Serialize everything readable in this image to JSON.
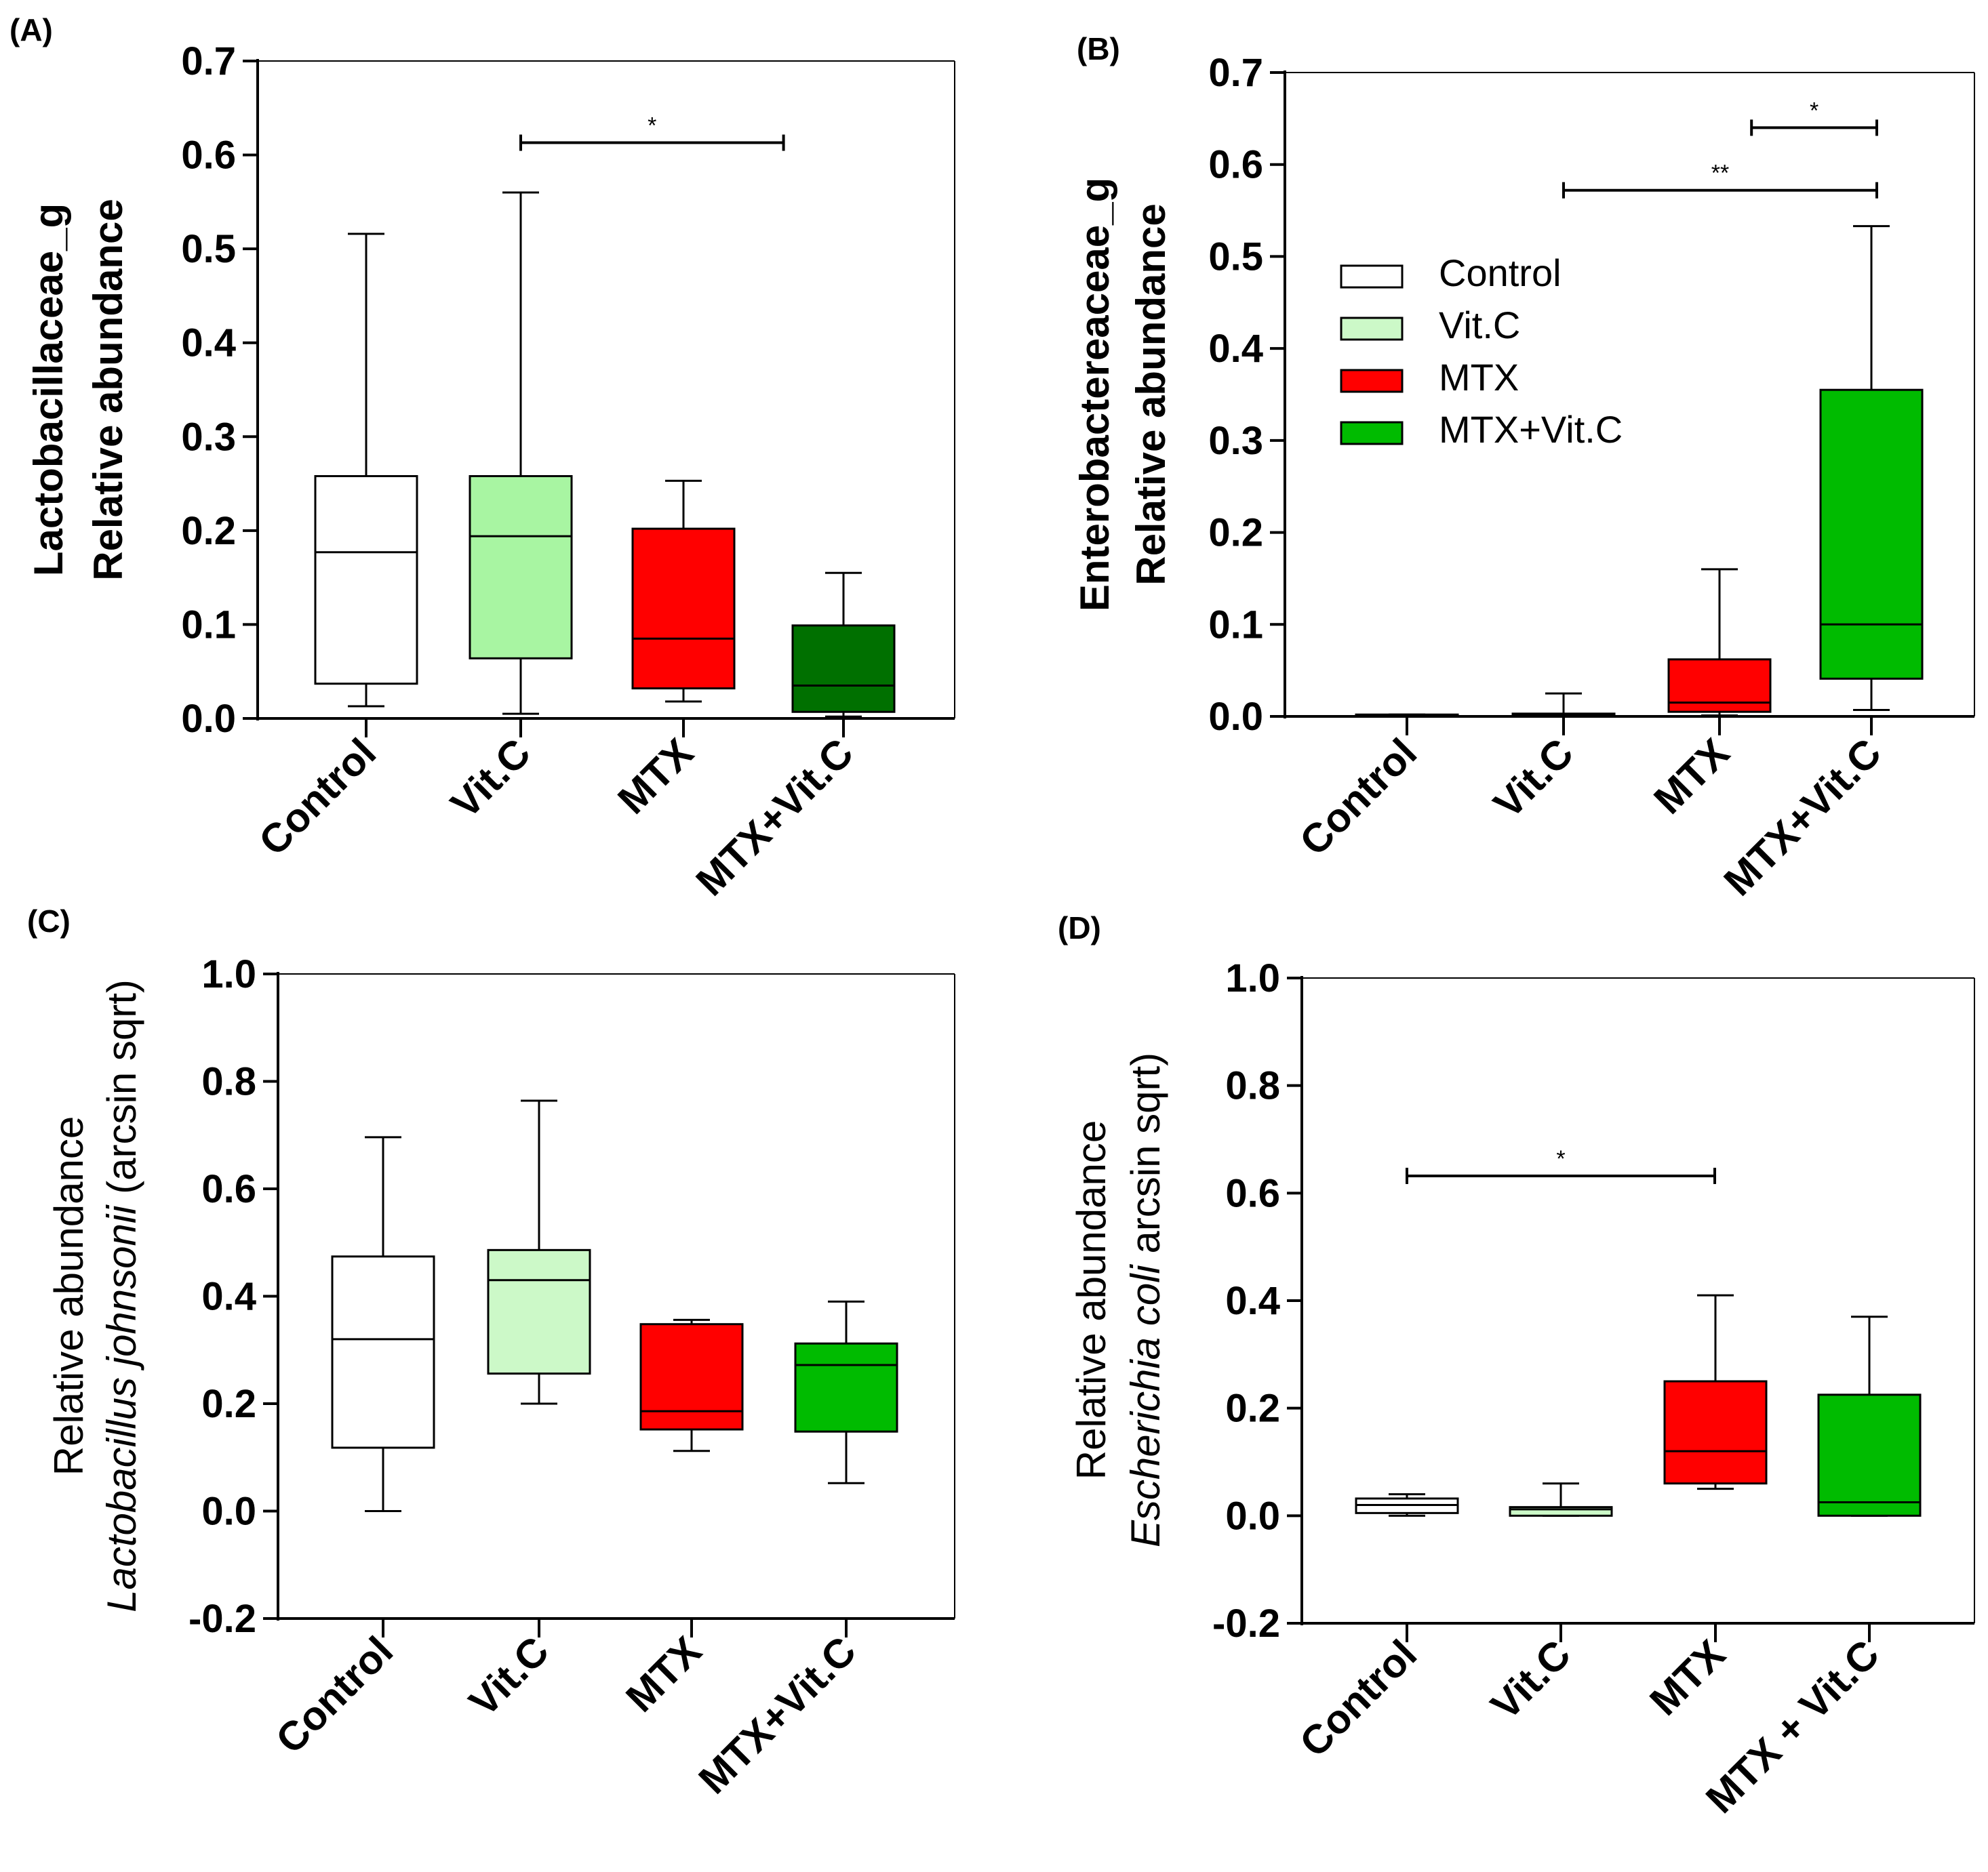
{
  "colors": {
    "control": "#ffffff",
    "vitc": "#a8f5a2",
    "vitc_light": "#ccf9c8",
    "mtx": "#ff0000",
    "mtx_vitc_dark": "#007000",
    "mtx_vitc": "#00bb00"
  },
  "chart_data": [
    {
      "type": "box",
      "panel": "(A)",
      "title": "",
      "ylabel_lines": [
        "Lactobacillaceae_g",
        "Relative abundance"
      ],
      "ylim": [
        0,
        0.7
      ],
      "yticks": [
        0.0,
        0.1,
        0.2,
        0.3,
        0.4,
        0.5,
        0.6,
        0.7
      ],
      "ytick_labels": [
        "0.0",
        "0.1",
        "0.2",
        "0.3",
        "0.4",
        "0.5",
        "0.6",
        "0.7"
      ],
      "categories": [
        "Control",
        "Vit.C",
        "MTX",
        "MTX+Vit.C"
      ],
      "boxes": [
        {
          "min": 0.013,
          "q1": 0.037,
          "median": 0.177,
          "q3": 0.258,
          "max": 0.516,
          "color": "control"
        },
        {
          "min": 0.005,
          "q1": 0.064,
          "median": 0.194,
          "q3": 0.258,
          "max": 0.56,
          "color": "vitc"
        },
        {
          "min": 0.018,
          "q1": 0.032,
          "median": 0.085,
          "q3": 0.202,
          "max": 0.253,
          "color": "mtx"
        },
        {
          "min": 0.002,
          "q1": 0.007,
          "median": 0.035,
          "q3": 0.099,
          "max": 0.155,
          "color": "mtx_vitc_dark"
        }
      ],
      "significance": [
        {
          "from": 1,
          "to": 2.7,
          "y": 0.613,
          "label": "*"
        }
      ]
    },
    {
      "type": "box",
      "panel": "(B)",
      "title": "",
      "ylabel_lines": [
        "Enterobactereaceae_g",
        "Relative abundance"
      ],
      "ylim": [
        0,
        0.7
      ],
      "yticks": [
        0.0,
        0.1,
        0.2,
        0.3,
        0.4,
        0.5,
        0.6,
        0.7
      ],
      "ytick_labels": [
        "0.0",
        "0.1",
        "0.2",
        "0.3",
        "0.4",
        "0.5",
        "0.6",
        "0.7"
      ],
      "categories": [
        "Control",
        "Vit.C",
        "MTX",
        "MTX+Vit.C"
      ],
      "boxes": [
        {
          "min": 0.001,
          "q1": 0.001,
          "median": 0.001,
          "q3": 0.002,
          "max": 0.002,
          "color": "control"
        },
        {
          "min": 0.0,
          "q1": 0.001,
          "median": 0.002,
          "q3": 0.003,
          "max": 0.025,
          "color": "vitc"
        },
        {
          "min": 0.001,
          "q1": 0.005,
          "median": 0.015,
          "q3": 0.062,
          "max": 0.16,
          "color": "mtx"
        },
        {
          "min": 0.007,
          "q1": 0.041,
          "median": 0.1,
          "q3": 0.355,
          "max": 0.533,
          "color": "mtx_vitc"
        }
      ],
      "significance": [
        {
          "from": 2.2,
          "to": 3.0,
          "y": 0.64,
          "label": "*"
        },
        {
          "from": 1.0,
          "to": 3.0,
          "y": 0.572,
          "label": "**"
        }
      ],
      "legend": {
        "position": "center-left",
        "entries": [
          {
            "label": "Control",
            "color": "control"
          },
          {
            "label": "Vit.C",
            "color": "vitc_light"
          },
          {
            "label": "MTX",
            "color": "mtx"
          },
          {
            "label": "MTX+Vit.C",
            "color": "mtx_vitc"
          }
        ]
      }
    },
    {
      "type": "box",
      "panel": "(C)",
      "title": "",
      "ylabel_lines": [
        "Relative abundance",
        "Lactobacillus johnsonii (arcsin sqrt)"
      ],
      "ylabel_italic_part": "Lactobacillus johnsonii",
      "ylabel_rest": " (arcsin sqrt)",
      "ylim": [
        -0.2,
        1.0
      ],
      "yticks": [
        -0.2,
        0.0,
        0.2,
        0.4,
        0.6,
        0.8,
        1.0
      ],
      "ytick_labels": [
        "-0.2",
        "0.0",
        "0.2",
        "0.4",
        "0.6",
        "0.8",
        "1.0"
      ],
      "categories": [
        "Control",
        "Vit.C",
        "MTX",
        "MTX+Vit.C"
      ],
      "boxes": [
        {
          "min": 0.0,
          "q1": 0.118,
          "median": 0.32,
          "q3": 0.474,
          "max": 0.696,
          "color": "control"
        },
        {
          "min": 0.2,
          "q1": 0.256,
          "median": 0.43,
          "q3": 0.486,
          "max": 0.764,
          "color": "vitc_light"
        },
        {
          "min": 0.112,
          "q1": 0.152,
          "median": 0.186,
          "q3": 0.348,
          "max": 0.356,
          "color": "mtx"
        },
        {
          "min": 0.052,
          "q1": 0.148,
          "median": 0.272,
          "q3": 0.312,
          "max": 0.39,
          "color": "mtx_vitc"
        }
      ],
      "significance": []
    },
    {
      "type": "box",
      "panel": "(D)",
      "title": "",
      "ylabel_lines": [
        "Relative abundance",
        "Escherichia coli arcsin sqrt)"
      ],
      "ylabel_italic_part": "Escherichia coli",
      "ylabel_rest": " arcsin sqrt)",
      "ylim": [
        -0.2,
        1.0
      ],
      "yticks": [
        -0.2,
        0.0,
        0.2,
        0.4,
        0.6,
        0.8,
        1.0
      ],
      "ytick_labels": [
        "-0.2",
        "0.0",
        "0.2",
        "0.4",
        "0.6",
        "0.8",
        "1.0"
      ],
      "categories": [
        "Control",
        "Vit.C",
        "MTX",
        "MTX + Vit.C"
      ],
      "boxes": [
        {
          "min": 0.0,
          "q1": 0.005,
          "median": 0.02,
          "q3": 0.032,
          "max": 0.04,
          "color": "control"
        },
        {
          "min": 0.0,
          "q1": 0.0,
          "median": 0.012,
          "q3": 0.016,
          "max": 0.06,
          "color": "vitc_light"
        },
        {
          "min": 0.05,
          "q1": 0.06,
          "median": 0.12,
          "q3": 0.25,
          "max": 0.41,
          "color": "mtx"
        },
        {
          "min": 0.0,
          "q1": 0.0,
          "median": 0.025,
          "q3": 0.225,
          "max": 0.37,
          "color": "mtx_vitc"
        }
      ],
      "significance": [
        {
          "from": 0,
          "to": 2,
          "y": 0.632,
          "label": "*"
        }
      ]
    }
  ]
}
